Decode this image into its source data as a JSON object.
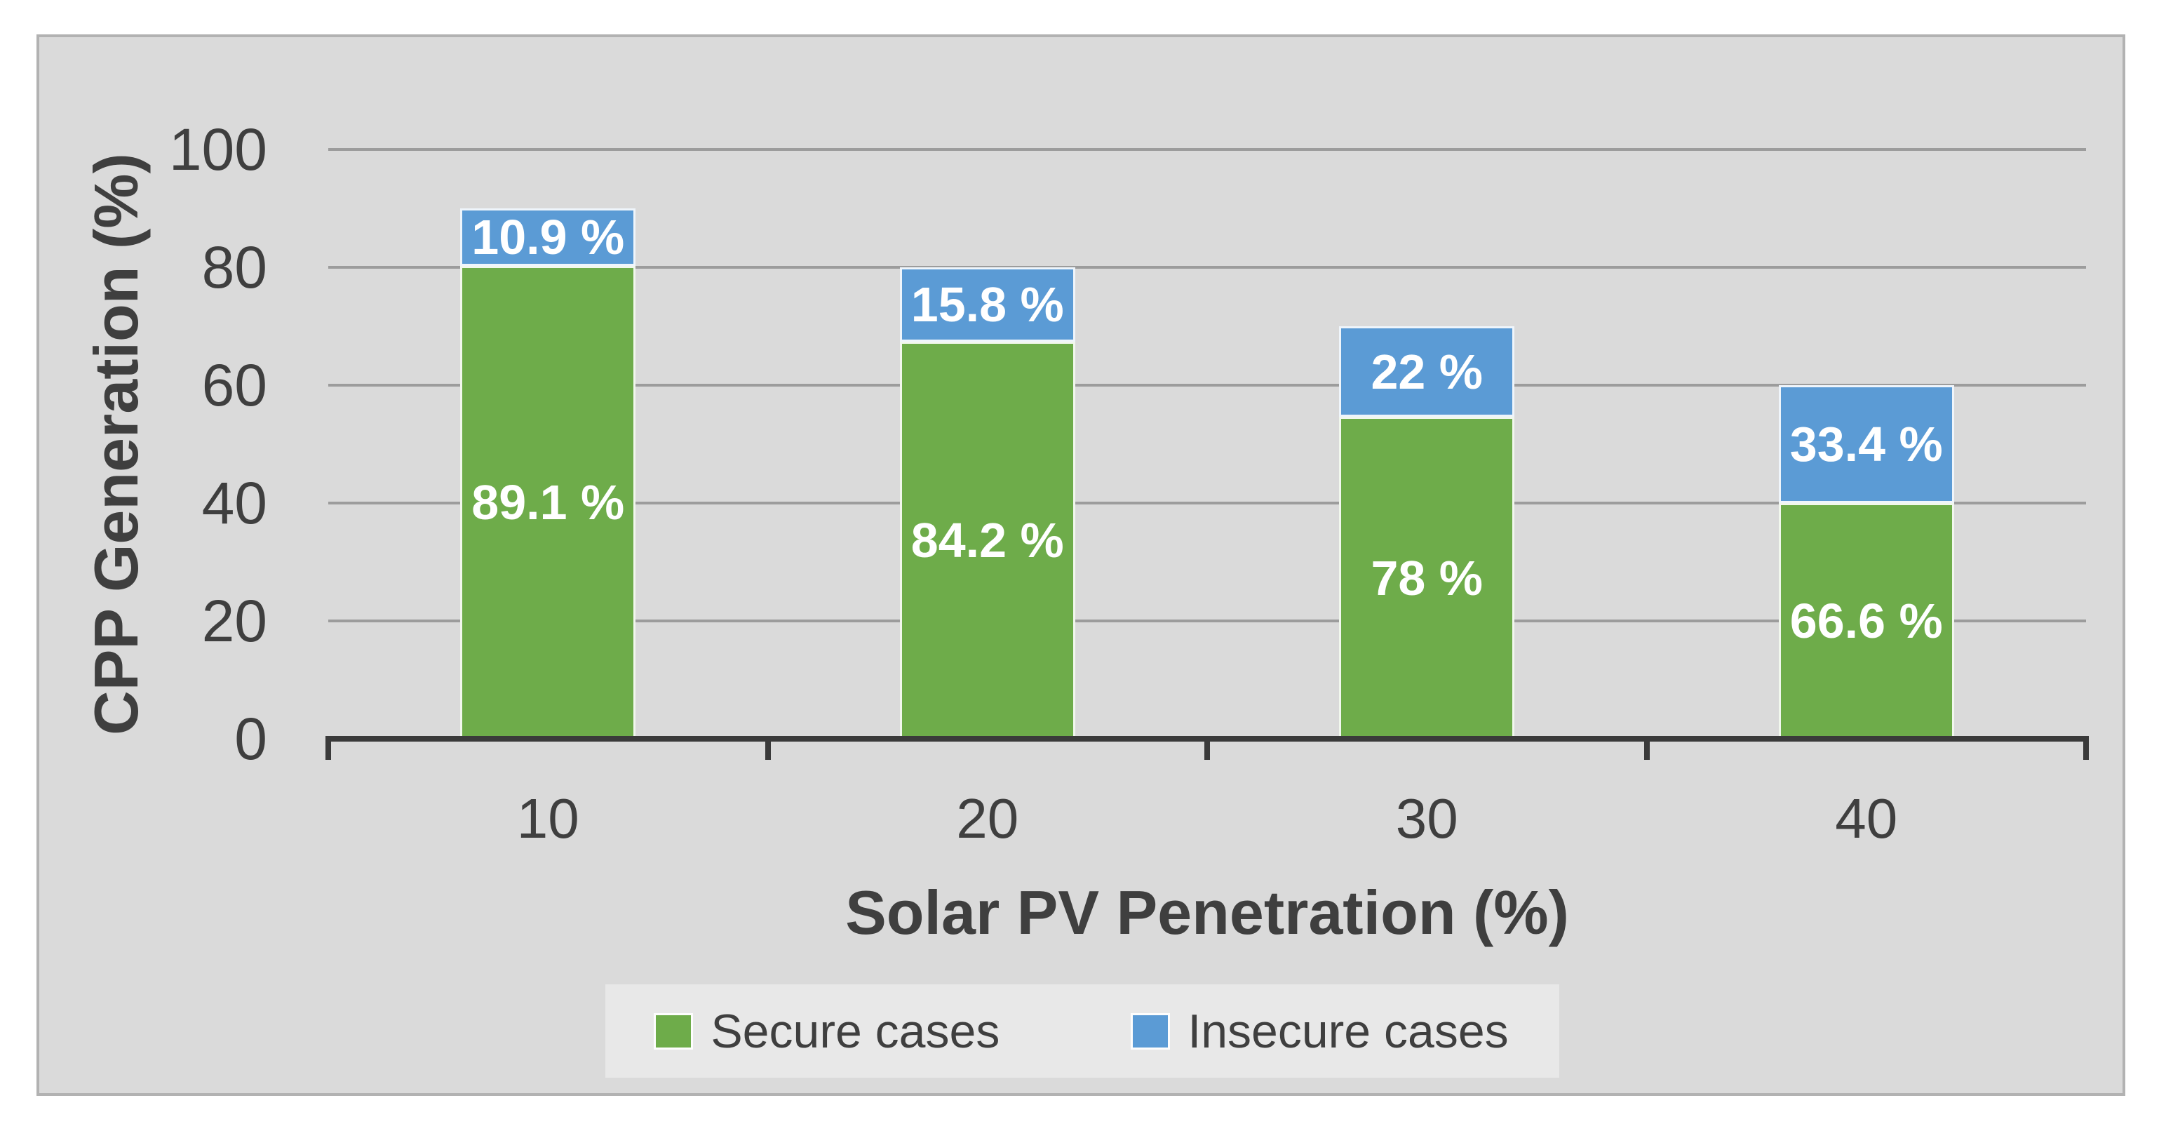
{
  "page": {
    "background": "#FFFFFF"
  },
  "figure": {
    "background": "#DADADA",
    "border_color": "#B2B2B2",
    "gridline_color": "#9C9C9C",
    "axis_color": "#3A3A3A",
    "text_color": "#3F3F3F",
    "legend_background": "#E8E8E8",
    "data_label_color": "#FFFFFF"
  },
  "chart_data": {
    "type": "bar",
    "stacked": true,
    "title": "",
    "xlabel": "Solar PV Penetration (%)",
    "ylabel": "CPP Generation (%)",
    "categories": [
      "10",
      "20",
      "30",
      "40"
    ],
    "ylim": [
      0,
      100
    ],
    "yticks": [
      0,
      20,
      40,
      60,
      80,
      100
    ],
    "grid": "horizontal-major",
    "legend_position": "bottom-center",
    "bar_totals": [
      90,
      80,
      70,
      60
    ],
    "series": [
      {
        "name": "Secure cases",
        "color": "#6EAC4A",
        "values": [
          80.19,
          67.36,
          54.6,
          39.96
        ],
        "percent_of_total": [
          89.1,
          84.2,
          78,
          66.6
        ],
        "percent_labels": [
          "89.1 %",
          "84.2 %",
          "78 %",
          "66.6 %"
        ],
        "label_color": "#FFFFFF"
      },
      {
        "name": "Insecure cases",
        "color": "#5B9BD5",
        "values": [
          9.81,
          12.64,
          15.4,
          20.04
        ],
        "percent_of_total": [
          10.9,
          15.8,
          22,
          33.4
        ],
        "percent_labels": [
          "10.9 %",
          "15.8 %",
          "22 %",
          "33.4 %"
        ],
        "label_color": "#FFFFFF"
      }
    ]
  }
}
